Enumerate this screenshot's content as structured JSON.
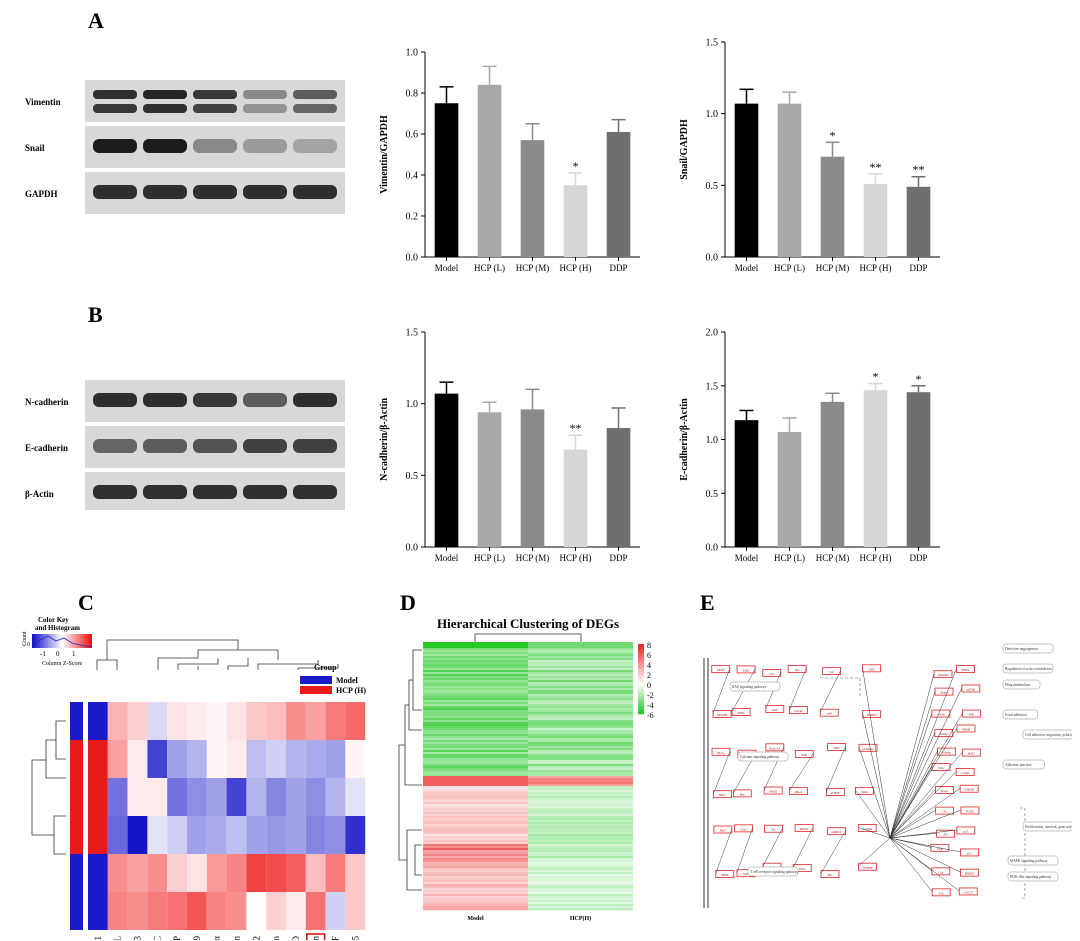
{
  "panels": {
    "a": "A",
    "b": "B",
    "c": "C",
    "d": "D",
    "e": "E"
  },
  "blots": {
    "a": {
      "rows": [
        {
          "label": "Vimentin",
          "intensity": [
            0.85,
            0.9,
            0.8,
            0.35,
            0.6
          ],
          "double": true
        },
        {
          "label": "Snail",
          "intensity": [
            0.95,
            0.95,
            0.35,
            0.25,
            0.2
          ],
          "double": false
        },
        {
          "label": "GAPDH",
          "intensity": [
            0.85,
            0.85,
            0.85,
            0.85,
            0.85
          ],
          "double": false
        }
      ]
    },
    "b": {
      "rows": [
        {
          "label": "N-cadherin",
          "intensity": [
            0.85,
            0.85,
            0.8,
            0.6,
            0.85
          ],
          "double": false
        },
        {
          "label": "E-cadherin",
          "intensity": [
            0.55,
            0.6,
            0.65,
            0.75,
            0.75
          ],
          "double": false
        },
        {
          "label": "β-Actin",
          "intensity": [
            0.85,
            0.85,
            0.85,
            0.85,
            0.85
          ],
          "double": false
        }
      ]
    }
  },
  "chart_data": [
    {
      "type": "bar",
      "ylabel": "Vimentin/GAPDH",
      "categories": [
        "Model",
        "HCP (L)",
        "HCP (M)",
        "HCP (H)",
        "DDP"
      ],
      "values": [
        0.75,
        0.84,
        0.57,
        0.35,
        0.61
      ],
      "errors": [
        0.08,
        0.09,
        0.08,
        0.06,
        0.06
      ],
      "significance": [
        "",
        "",
        "",
        "*",
        ""
      ],
      "ylim": [
        0,
        1.0
      ],
      "yticks": [
        "0.0",
        "0.2",
        "0.4",
        "0.6",
        "0.8",
        "1.0"
      ],
      "colors": [
        "#000000",
        "#a8a8a8",
        "#8a8a8a",
        "#d6d6d6",
        "#6f6f6f"
      ]
    },
    {
      "type": "bar",
      "ylabel": "Snail/GAPDH",
      "categories": [
        "Model",
        "HCP (L)",
        "HCP (M)",
        "HCP (H)",
        "DDP"
      ],
      "values": [
        1.07,
        1.07,
        0.7,
        0.51,
        0.49
      ],
      "errors": [
        0.1,
        0.08,
        0.1,
        0.07,
        0.07
      ],
      "significance": [
        "",
        "",
        "*",
        "**",
        "**"
      ],
      "ylim": [
        0,
        1.5
      ],
      "yticks": [
        "0.0",
        "0.5",
        "1.0",
        "1.5"
      ],
      "colors": [
        "#000000",
        "#a8a8a8",
        "#8a8a8a",
        "#d6d6d6",
        "#6f6f6f"
      ]
    },
    {
      "type": "bar",
      "ylabel": "N-cadherin/β-Actin",
      "categories": [
        "Model",
        "HCP (L)",
        "HCP (M)",
        "HCP (H)",
        "DDP"
      ],
      "values": [
        1.07,
        0.94,
        0.96,
        0.68,
        0.83
      ],
      "errors": [
        0.08,
        0.07,
        0.14,
        0.1,
        0.14
      ],
      "significance": [
        "",
        "",
        "",
        "**",
        ""
      ],
      "ylim": [
        0,
        1.5
      ],
      "yticks": [
        "0.0",
        "0.5",
        "1.0",
        "1.5"
      ],
      "colors": [
        "#000000",
        "#a8a8a8",
        "#8a8a8a",
        "#d6d6d6",
        "#6f6f6f"
      ]
    },
    {
      "type": "bar",
      "ylabel": "E-cadherin/β-Actin",
      "categories": [
        "Model",
        "HCP (L)",
        "HCP (M)",
        "HCP (H)",
        "DDP"
      ],
      "values": [
        1.18,
        1.07,
        1.35,
        1.46,
        1.44
      ],
      "errors": [
        0.09,
        0.13,
        0.08,
        0.06,
        0.06
      ],
      "significance": [
        "",
        "",
        "",
        "*",
        "*"
      ],
      "ylim": [
        0,
        2.0
      ],
      "yticks": [
        "0.0",
        "0.5",
        "1.0",
        "1.5",
        "2.0"
      ],
      "colors": [
        "#000000",
        "#a8a8a8",
        "#8a8a8a",
        "#d6d6d6",
        "#6f6f6f"
      ]
    },
    {
      "type": "heatmap",
      "columns": [
        "CT-1",
        "FasL",
        "TCA-3",
        "TARC",
        "TSLP",
        "IL-9",
        "SDF-1α",
        "Chordin",
        "PlGF-2",
        "Limon",
        "VEFG-D",
        "Gremlin",
        "bFGF",
        "IL-15"
      ],
      "highlight_column": "Gremlin",
      "row_groups": [
        "Model",
        "HCP (H)",
        "HCP (H)",
        "HCP (H)",
        "Model",
        "Model"
      ],
      "values": [
        [
          -2,
          0.8,
          0.5,
          -0.4,
          0.3,
          0.2,
          0.1,
          0.3,
          0.6,
          0.7,
          1.2,
          1.0,
          1.4,
          1.6
        ],
        [
          -2,
          1.0,
          0.2,
          -2,
          -1,
          -0.8,
          0.1,
          0.2,
          -0.7,
          -0.5,
          -0.8,
          -0.9,
          -1.0,
          0.1
        ],
        [
          -2,
          -1.5,
          0.2,
          0.2,
          -1.5,
          -1.2,
          -1.0,
          -2,
          -0.8,
          -1.3,
          -1.0,
          -1.2,
          -0.8,
          -0.3
        ],
        [
          -2,
          -1.6,
          -2.5,
          -0.3,
          -0.5,
          -1.0,
          -0.9,
          -0.7,
          -1.0,
          -1.1,
          -1.0,
          -1.3,
          -1.2,
          -2.2
        ],
        [
          -2,
          1.2,
          1.0,
          1.2,
          0.5,
          0.3,
          1.1,
          1.3,
          2.0,
          1.9,
          1.7,
          0.7,
          1.4,
          0.6
        ],
        [
          -2,
          1.3,
          1.2,
          1.4,
          1.5,
          1.8,
          1.3,
          1.2,
          0.0,
          0.5,
          0.2,
          1.5,
          -0.5,
          0.6
        ]
      ],
      "legend": {
        "title": "Group",
        "items": [
          {
            "name": "Model",
            "color": "#1a1ac8"
          },
          {
            "name": "HCP (H)",
            "color": "#e81a1a"
          }
        ]
      },
      "color_key": {
        "title": "Color Key and Histogram",
        "xlabel": "Column Z-Score",
        "ylabel": "Count",
        "ticks": [
          "-1",
          "0",
          "1"
        ],
        "yticks": [
          "0"
        ]
      }
    },
    {
      "type": "heatmap",
      "title": "Hierarchical Clustering of DEGs",
      "columns": [
        "Model",
        "HCP(H)"
      ],
      "colorbar_ticks": [
        "8",
        "6",
        "4",
        "2",
        "0",
        "-2",
        "-4",
        "-6"
      ]
    }
  ],
  "pathway": {
    "labels": [
      "Defective angiogenesis",
      "Regulation of actin cytoskeleton",
      "Drug metabolism",
      "Focal adhesion",
      "Cell adhesion, migration, polarity",
      "Adherens junction",
      "Proliferation, survival, gene activation",
      "MAPK signaling pathway",
      "PI3K-Akt signaling pathway",
      "RAS signaling pathway",
      "Calcium signaling pathway",
      "T cell receptor signaling pathway"
    ],
    "nodes": [
      "VEGF",
      "VEGFR",
      "PLCγ",
      "PKC",
      "Raf1",
      "MEK",
      "ERK",
      "PI3K",
      "Akt",
      "Ras",
      "Grb2",
      "SOS",
      "Sos",
      "GEF",
      "RasGAP",
      "eNOS",
      "Src",
      "FAK",
      "Rac",
      "Cdc42",
      "PAK",
      "RhoA",
      "ROCK",
      "MLC",
      "Vav",
      "p38",
      "JNK",
      "PTEN",
      "GRB10",
      "Shc",
      "CRK",
      "Paxillin",
      "p130Cas",
      "Talin",
      "Actinin",
      "Filamin",
      "Vinculin",
      "Zyxin",
      "VASP",
      "Tensin",
      "Parvin",
      "ILK",
      "Rap1",
      "C3G",
      "Abl",
      "Fyn",
      "Lck",
      "Csk",
      "PDK1",
      "mTOR",
      "IKK",
      "NFkB",
      "BAD",
      "Casp9",
      "GSK3β",
      "FOXO",
      "p27",
      "p21",
      "MDM2",
      "CDC37"
    ]
  }
}
